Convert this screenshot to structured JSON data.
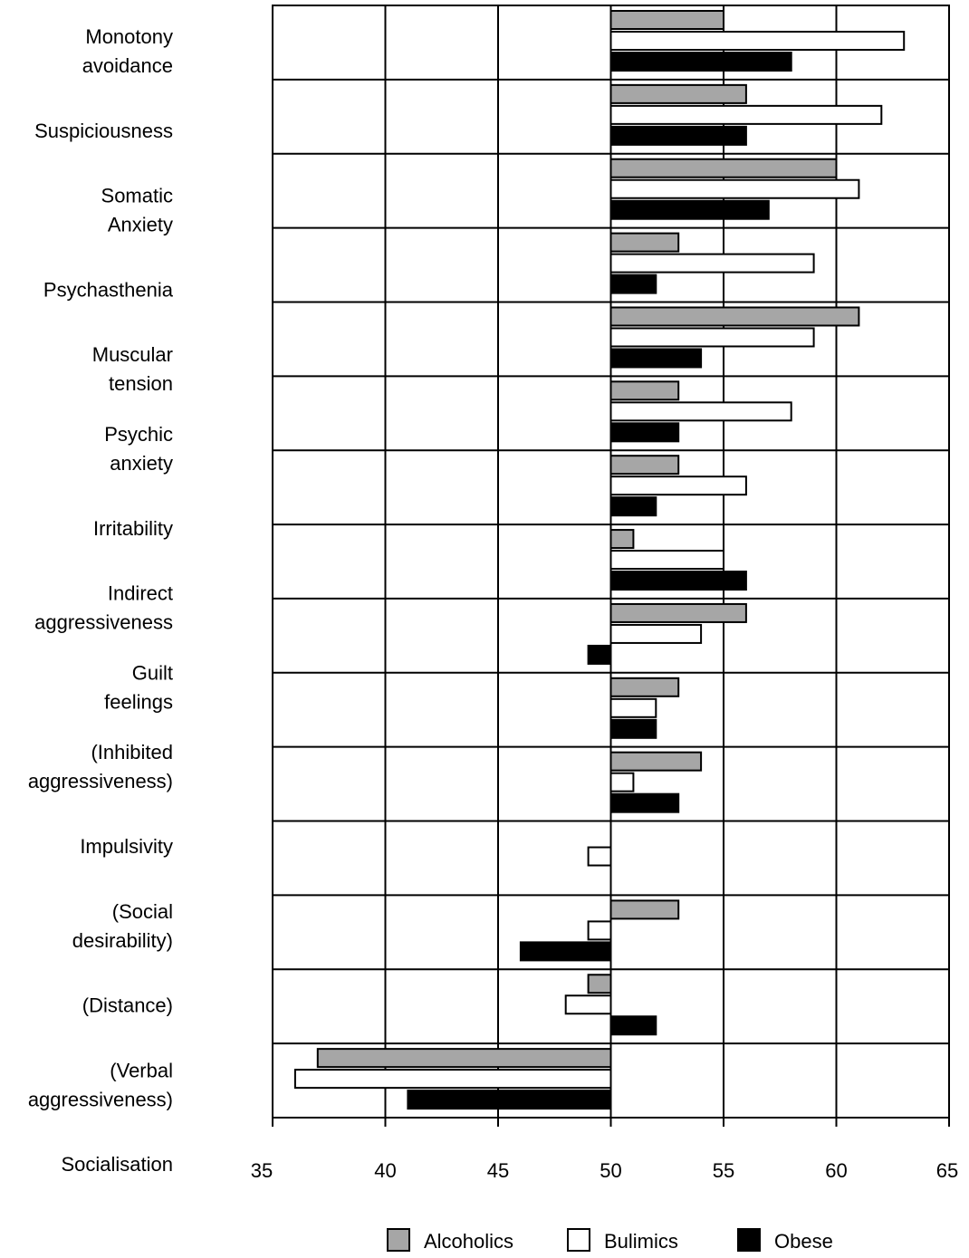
{
  "chart_data": {
    "type": "bar",
    "orientation": "horizontal",
    "baseline": 50,
    "xlim": [
      35,
      65
    ],
    "x_ticks": [
      35,
      40,
      45,
      50,
      55,
      60,
      65
    ],
    "grid": true,
    "legend_position": "bottom",
    "categories": [
      [
        "Monotony",
        "avoidance"
      ],
      [
        "Suspiciousness"
      ],
      [
        "Somatic",
        "Anxiety"
      ],
      [
        "Psychasthenia"
      ],
      [
        "Muscular",
        "tension"
      ],
      [
        "Psychic",
        "anxiety"
      ],
      [
        "Irritability"
      ],
      [
        "Indirect",
        "aggressiveness"
      ],
      [
        "Guilt",
        "feelings"
      ],
      [
        "(Inhibited",
        "aggressiveness)"
      ],
      [
        "Impulsivity"
      ],
      [
        "(Social",
        "desirability)"
      ],
      [
        "(Distance)"
      ],
      [
        "(Verbal",
        "aggressiveness)"
      ],
      [
        "Socialisation"
      ]
    ],
    "series": [
      {
        "name": "Alcoholics",
        "color": "#a6a6a6",
        "values": [
          55,
          56,
          60,
          53,
          61,
          53,
          53,
          51,
          56,
          53,
          54,
          null,
          53,
          49,
          37
        ]
      },
      {
        "name": "Bulimics",
        "color": "#ffffff",
        "values": [
          63,
          62,
          61,
          59,
          59,
          58,
          56,
          55,
          54,
          52,
          51,
          49,
          49,
          48,
          36
        ]
      },
      {
        "name": "Obese",
        "color": "#000000",
        "values": [
          58,
          56,
          57,
          52,
          54,
          53,
          52,
          56,
          49,
          52,
          53,
          null,
          46,
          52,
          41
        ]
      }
    ]
  }
}
